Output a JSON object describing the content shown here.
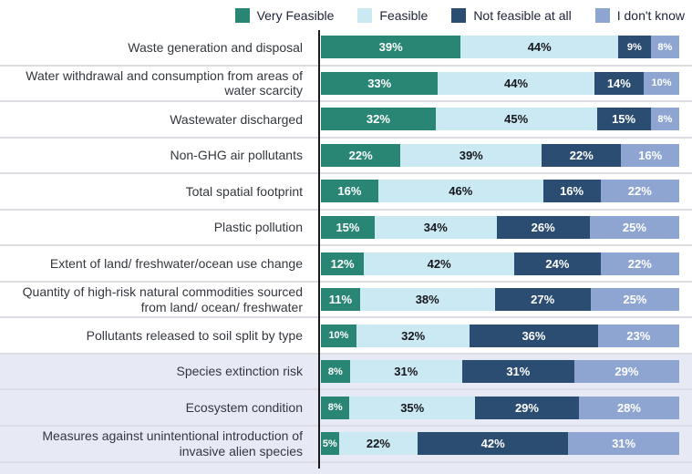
{
  "chart_data": {
    "type": "bar",
    "orientation": "horizontal-stacked",
    "unit": "%",
    "x_max": 100,
    "grid": false,
    "legend_position": "top",
    "series": [
      {
        "name": "Very Feasible",
        "color": "#2A8674",
        "text_color": "#FFFFFF"
      },
      {
        "name": "Feasible",
        "color": "#CBE9F2",
        "text_color": "#15171C"
      },
      {
        "name": "Not feasible at all",
        "color": "#2B4D72",
        "text_color": "#FFFFFF"
      },
      {
        "name": "I don't know",
        "color": "#8EA5D2",
        "text_color": "#FFFFFF"
      }
    ],
    "categories": [
      "Waste generation and disposal",
      "Water withdrawal and consumption from areas of water scarcity",
      "Wastewater discharged",
      "Non-GHG air pollutants",
      "Total spatial footprint",
      "Plastic pollution",
      "Extent of land/ freshwater/ocean use change",
      "Quantity of high-risk natural commodities sourced from land/ ocean/ freshwater",
      "Pollutants released to soil split by type",
      "Species extinction risk",
      "Ecosystem condition",
      "Measures against unintentional introduction of invasive alien species"
    ],
    "rows": [
      [
        39,
        44,
        9,
        8
      ],
      [
        33,
        44,
        14,
        10
      ],
      [
        32,
        45,
        15,
        8
      ],
      [
        22,
        39,
        22,
        16
      ],
      [
        16,
        46,
        16,
        22
      ],
      [
        15,
        34,
        26,
        25
      ],
      [
        12,
        42,
        24,
        22
      ],
      [
        11,
        38,
        27,
        25
      ],
      [
        10,
        32,
        36,
        23
      ],
      [
        8,
        31,
        31,
        29
      ],
      [
        8,
        35,
        29,
        28
      ],
      [
        5,
        22,
        42,
        31
      ]
    ],
    "highlighted_rows": [
      9,
      10,
      11
    ],
    "highlight_color": "#E7EAF4",
    "axis_color": "#1B1B1B"
  }
}
